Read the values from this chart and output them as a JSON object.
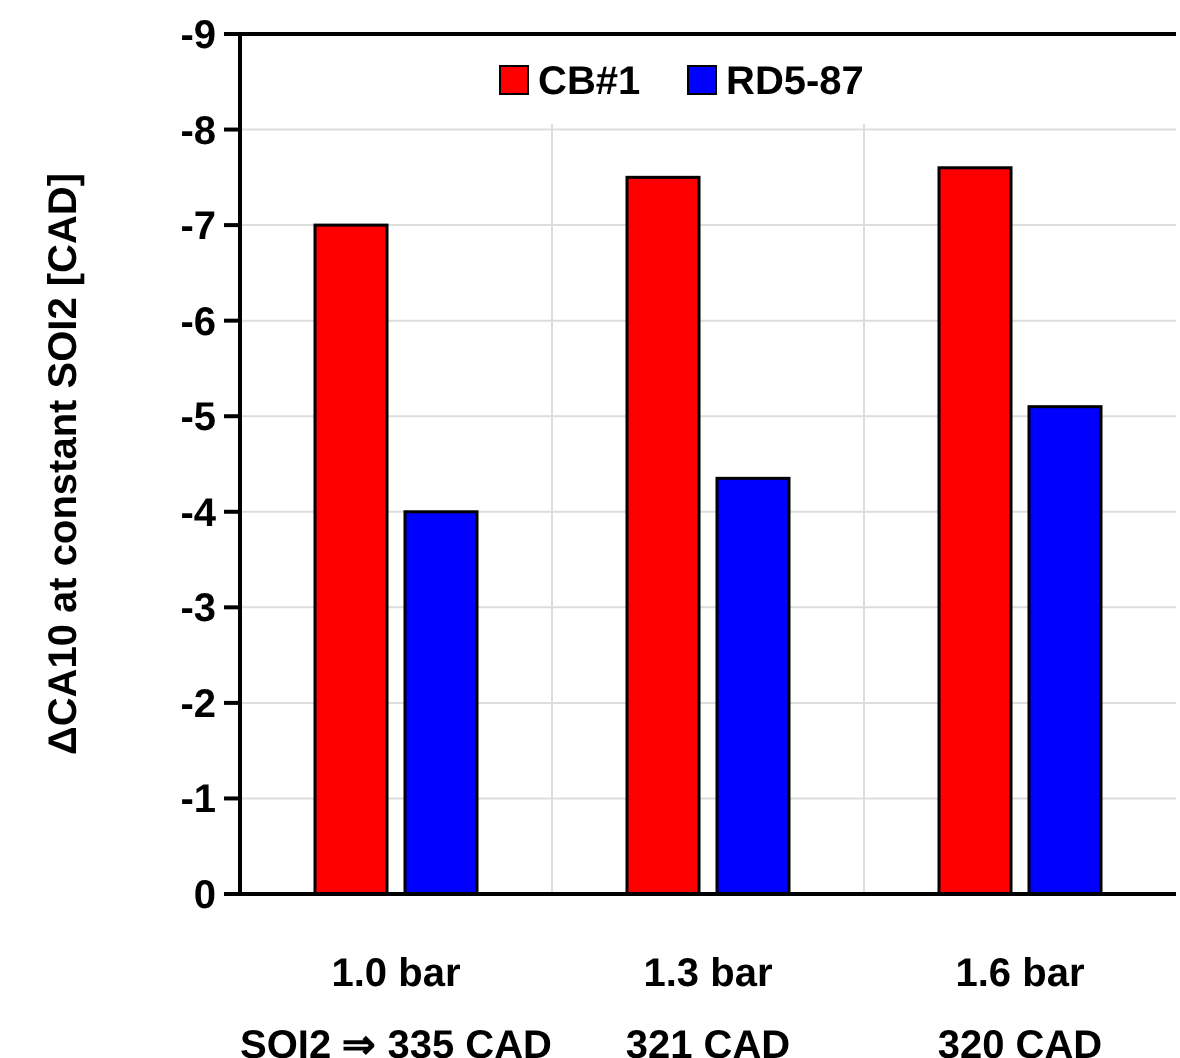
{
  "chart_data": {
    "type": "bar",
    "ylabel": "ΔCA10 at constant SOI2 [CAD]",
    "categories": [
      "1.0 bar\nSOI2 ⇒ 335 CAD",
      "1.3 bar\n321 CAD",
      "1.6 bar\n320 CAD"
    ],
    "series": [
      {
        "name": "CB#1",
        "color": "#ff0000",
        "values": [
          -7.0,
          -7.5,
          -7.6
        ]
      },
      {
        "name": "RD5-87",
        "color": "#0000ff",
        "values": [
          -4.0,
          -4.35,
          -5.1
        ]
      }
    ],
    "ylim": [
      0,
      -9
    ],
    "yticks": [
      0,
      -1,
      -2,
      -3,
      -4,
      -5,
      -6,
      -7,
      -8,
      -9
    ],
    "grid": true,
    "legend": "top"
  }
}
